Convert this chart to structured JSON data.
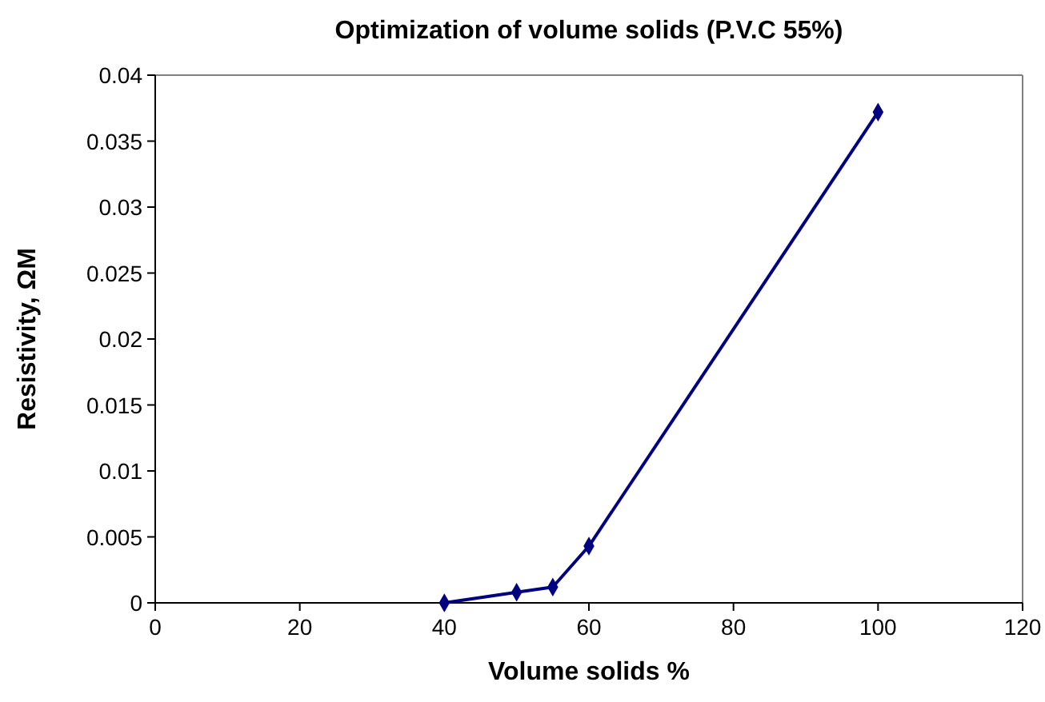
{
  "chart_data": {
    "type": "line",
    "title": "Optimization of volume solids (P.V.C 55%)",
    "xlabel": "Volume solids %",
    "ylabel": "Resistivity, ΩM",
    "x": [
      40,
      50,
      55,
      60,
      100
    ],
    "series": [
      {
        "color": "#000080",
        "values": [
          0,
          0.0008,
          0.0012,
          0.0043,
          0.0372
        ]
      }
    ],
    "xlim": [
      0,
      120
    ],
    "xticks": [
      0,
      20,
      40,
      60,
      80,
      100,
      120
    ],
    "ylim": [
      0,
      0.04
    ],
    "yticks": [
      0,
      0.005,
      0.01,
      0.015,
      0.02,
      0.025,
      0.03,
      0.035,
      0.04
    ],
    "grid": false,
    "marker": "diamond",
    "line_style": "solid"
  }
}
